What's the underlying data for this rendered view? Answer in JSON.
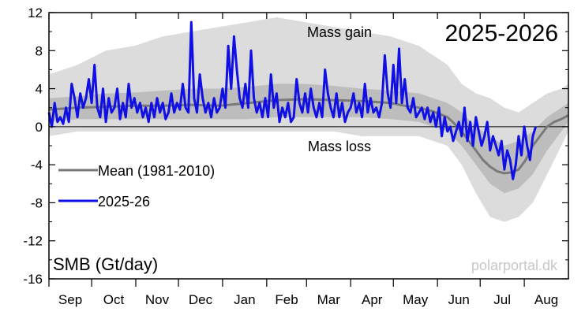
{
  "chart_data": {
    "type": "line",
    "title": "2025-2026",
    "ylabel_inside": "SMB (Gt/day)",
    "annotations": {
      "top": "Mass gain",
      "bottom": "Mass loss"
    },
    "watermark": "polarportal.dk",
    "x_ticks": [
      "Sep",
      "Oct",
      "Nov",
      "Dec",
      "Jan",
      "Feb",
      "Mar",
      "Apr",
      "May",
      "Jun",
      "Jul",
      "Aug"
    ],
    "ylim": [
      -16,
      12
    ],
    "y_ticks": [
      "12",
      "8",
      "4",
      "0",
      "-4",
      "-8",
      "-12",
      "-16"
    ],
    "legend": [
      {
        "name": "Mean (1981-2010)",
        "color": "#7a7a7a"
      },
      {
        "name": "2025-26",
        "color": "#1010e6"
      }
    ],
    "colors": {
      "envelope_outer": "#dcdcdc",
      "envelope_inner": "#bdbdbd",
      "mean": "#7a7a7a",
      "current": "#1010e6"
    },
    "series": [
      {
        "name": "Mean (1981-2010)",
        "points": [
          [
            0,
            1.8
          ],
          [
            20,
            2.0
          ],
          [
            40,
            2.1
          ],
          [
            60,
            2.2
          ],
          [
            80,
            2.2
          ],
          [
            100,
            2.3
          ],
          [
            120,
            2.2
          ],
          [
            140,
            2.5
          ],
          [
            160,
            2.8
          ],
          [
            180,
            2.9
          ],
          [
            200,
            2.8
          ],
          [
            220,
            2.7
          ],
          [
            240,
            2.5
          ],
          [
            250,
            2.2
          ],
          [
            260,
            2.0
          ],
          [
            270,
            1.6
          ],
          [
            280,
            1.0
          ],
          [
            285,
            0.3
          ],
          [
            290,
            -0.5
          ],
          [
            295,
            -1.5
          ],
          [
            300,
            -2.5
          ],
          [
            305,
            -3.5
          ],
          [
            310,
            -4.2
          ],
          [
            315,
            -4.7
          ],
          [
            320,
            -4.9
          ],
          [
            325,
            -4.8
          ],
          [
            330,
            -4.5
          ],
          [
            335,
            -3.5
          ],
          [
            340,
            -2.0
          ],
          [
            345,
            -1.0
          ],
          [
            350,
            0.0
          ],
          [
            355,
            0.5
          ],
          [
            360,
            0.8
          ],
          [
            365,
            1.2
          ]
        ]
      },
      {
        "name": "2025-26",
        "points": [
          [
            0,
            1.5
          ],
          [
            2,
            0.0
          ],
          [
            4,
            2.5
          ],
          [
            6,
            0.5
          ],
          [
            8,
            1.0
          ],
          [
            10,
            0.3
          ],
          [
            12,
            2.0
          ],
          [
            14,
            0.5
          ],
          [
            16,
            4.5
          ],
          [
            18,
            3.0
          ],
          [
            20,
            1.0
          ],
          [
            22,
            3.5
          ],
          [
            24,
            2.0
          ],
          [
            26,
            3.0
          ],
          [
            28,
            5.0
          ],
          [
            30,
            2.5
          ],
          [
            32,
            6.5
          ],
          [
            34,
            2.0
          ],
          [
            36,
            1.0
          ],
          [
            38,
            4.0
          ],
          [
            40,
            0.5
          ],
          [
            42,
            3.0
          ],
          [
            44,
            1.5
          ],
          [
            46,
            2.0
          ],
          [
            48,
            4.0
          ],
          [
            50,
            0.8
          ],
          [
            52,
            2.5
          ],
          [
            54,
            1.0
          ],
          [
            56,
            4.5
          ],
          [
            58,
            2.0
          ],
          [
            60,
            3.0
          ],
          [
            62,
            1.5
          ],
          [
            64,
            2.5
          ],
          [
            66,
            1.0
          ],
          [
            68,
            2.0
          ],
          [
            70,
            0.5
          ],
          [
            72,
            2.5
          ],
          [
            74,
            1.0
          ],
          [
            76,
            3.0
          ],
          [
            78,
            1.5
          ],
          [
            80,
            2.5
          ],
          [
            82,
            0.8
          ],
          [
            84,
            1.5
          ],
          [
            86,
            3.5
          ],
          [
            88,
            1.5
          ],
          [
            90,
            2.5
          ],
          [
            92,
            1.8
          ],
          [
            94,
            4.5
          ],
          [
            96,
            2.0
          ],
          [
            98,
            1.5
          ],
          [
            100,
            11.0
          ],
          [
            102,
            3.0
          ],
          [
            104,
            1.5
          ],
          [
            106,
            5.5
          ],
          [
            108,
            3.0
          ],
          [
            110,
            1.5
          ],
          [
            112,
            2.5
          ],
          [
            114,
            1.0
          ],
          [
            116,
            3.0
          ],
          [
            118,
            1.5
          ],
          [
            120,
            2.0
          ],
          [
            122,
            4.0
          ],
          [
            124,
            2.0
          ],
          [
            126,
            8.5
          ],
          [
            128,
            4.0
          ],
          [
            130,
            9.5
          ],
          [
            132,
            6.0
          ],
          [
            134,
            3.0
          ],
          [
            136,
            2.0
          ],
          [
            138,
            4.5
          ],
          [
            140,
            2.0
          ],
          [
            142,
            8.0
          ],
          [
            144,
            3.0
          ],
          [
            146,
            1.5
          ],
          [
            148,
            2.5
          ],
          [
            150,
            1.0
          ],
          [
            152,
            3.0
          ],
          [
            154,
            1.0
          ],
          [
            156,
            5.5
          ],
          [
            158,
            2.0
          ],
          [
            160,
            3.5
          ],
          [
            162,
            0.5
          ],
          [
            164,
            2.0
          ],
          [
            166,
            1.0
          ],
          [
            168,
            2.5
          ],
          [
            170,
            0.5
          ],
          [
            172,
            1.0
          ],
          [
            174,
            5.0
          ],
          [
            176,
            2.5
          ],
          [
            178,
            1.5
          ],
          [
            180,
            3.5
          ],
          [
            182,
            1.5
          ],
          [
            184,
            4.0
          ],
          [
            186,
            2.0
          ],
          [
            188,
            1.0
          ],
          [
            190,
            2.5
          ],
          [
            192,
            1.0
          ],
          [
            194,
            6.0
          ],
          [
            196,
            3.5
          ],
          [
            198,
            2.0
          ],
          [
            200,
            1.0
          ],
          [
            202,
            3.5
          ],
          [
            204,
            1.0
          ],
          [
            206,
            2.5
          ],
          [
            208,
            0.5
          ],
          [
            210,
            1.5
          ],
          [
            212,
            2.0
          ],
          [
            214,
            3.5
          ],
          [
            216,
            1.5
          ],
          [
            218,
            2.5
          ],
          [
            220,
            1.0
          ],
          [
            222,
            4.5
          ],
          [
            224,
            1.5
          ],
          [
            226,
            3.0
          ],
          [
            228,
            1.5
          ],
          [
            230,
            2.0
          ],
          [
            232,
            1.0
          ],
          [
            234,
            2.5
          ],
          [
            236,
            7.5
          ],
          [
            238,
            3.5
          ],
          [
            240,
            2.0
          ],
          [
            242,
            6.5
          ],
          [
            244,
            2.5
          ],
          [
            246,
            8.2
          ],
          [
            248,
            2.5
          ],
          [
            250,
            5.0
          ],
          [
            252,
            2.0
          ],
          [
            254,
            1.5
          ],
          [
            256,
            3.0
          ],
          [
            258,
            1.0
          ],
          [
            260,
            1.5
          ],
          [
            262,
            2.0
          ],
          [
            264,
            0.8
          ],
          [
            266,
            2.0
          ],
          [
            268,
            0.5
          ],
          [
            270,
            1.5
          ],
          [
            272,
            0.0
          ],
          [
            274,
            2.0
          ],
          [
            276,
            -1.0
          ],
          [
            278,
            1.0
          ],
          [
            280,
            -0.5
          ],
          [
            282,
            0.0
          ],
          [
            284,
            -1.5
          ],
          [
            286,
            -0.5
          ],
          [
            288,
            0.5
          ],
          [
            290,
            -1.0
          ],
          [
            292,
            2.0
          ],
          [
            294,
            -1.5
          ],
          [
            296,
            0.5
          ],
          [
            298,
            -2.0
          ],
          [
            300,
            1.0
          ],
          [
            302,
            -0.5
          ],
          [
            304,
            -2.0
          ],
          [
            306,
            -1.0
          ],
          [
            308,
            0.5
          ],
          [
            310,
            -2.5
          ],
          [
            312,
            -1.0
          ],
          [
            314,
            -2.0
          ],
          [
            316,
            -3.0
          ],
          [
            318,
            -1.5
          ],
          [
            320,
            -4.5
          ],
          [
            322,
            -2.5
          ],
          [
            324,
            -3.5
          ],
          [
            326,
            -5.5
          ],
          [
            328,
            -4.0
          ],
          [
            330,
            -1.0
          ],
          [
            332,
            -3.0
          ],
          [
            334,
            0.0
          ],
          [
            336,
            -2.0
          ],
          [
            338,
            -3.5
          ],
          [
            340,
            -1.0
          ],
          [
            342,
            0.0
          ]
        ]
      }
    ],
    "envelope_outer": {
      "x": [
        0,
        20,
        40,
        60,
        80,
        100,
        120,
        140,
        160,
        180,
        200,
        220,
        240,
        260,
        270,
        280,
        290,
        300,
        310,
        320,
        330,
        340,
        350,
        360,
        365
      ],
      "upper": [
        5.5,
        6.5,
        8.0,
        8.5,
        9.5,
        10.0,
        10.5,
        11.0,
        11.5,
        11.0,
        10.5,
        10.0,
        9.5,
        8.5,
        7.5,
        6.5,
        4.5,
        3.5,
        3.0,
        2.0,
        1.5,
        2.5,
        3.5,
        4.0,
        4.5
      ],
      "lower": [
        -1.0,
        -0.5,
        -0.5,
        -0.5,
        -0.5,
        -0.5,
        -0.5,
        -0.5,
        -0.5,
        -0.5,
        -0.5,
        -1.0,
        -1.0,
        -1.0,
        -1.5,
        -2.0,
        -4.0,
        -7.0,
        -9.5,
        -10.0,
        -9.5,
        -8.0,
        -5.0,
        -2.0,
        -0.5
      ]
    },
    "envelope_inner": {
      "x": [
        0,
        20,
        40,
        60,
        80,
        100,
        120,
        140,
        160,
        180,
        200,
        220,
        240,
        260,
        270,
        280,
        290,
        300,
        310,
        320,
        330,
        340,
        350,
        360,
        365
      ],
      "upper": [
        3.0,
        3.2,
        3.5,
        3.6,
        3.8,
        4.0,
        4.0,
        4.2,
        4.5,
        4.5,
        4.3,
        4.0,
        3.8,
        3.5,
        3.0,
        2.5,
        1.5,
        0.0,
        -1.0,
        -2.0,
        -1.5,
        -0.5,
        1.0,
        2.0,
        2.5
      ],
      "lower": [
        0.5,
        0.8,
        0.8,
        0.8,
        0.8,
        0.8,
        0.8,
        0.8,
        1.0,
        1.0,
        1.0,
        1.0,
        0.8,
        0.5,
        0.0,
        -0.5,
        -2.0,
        -4.0,
        -6.0,
        -7.0,
        -6.5,
        -5.0,
        -2.5,
        -0.5,
        0.5
      ]
    }
  }
}
